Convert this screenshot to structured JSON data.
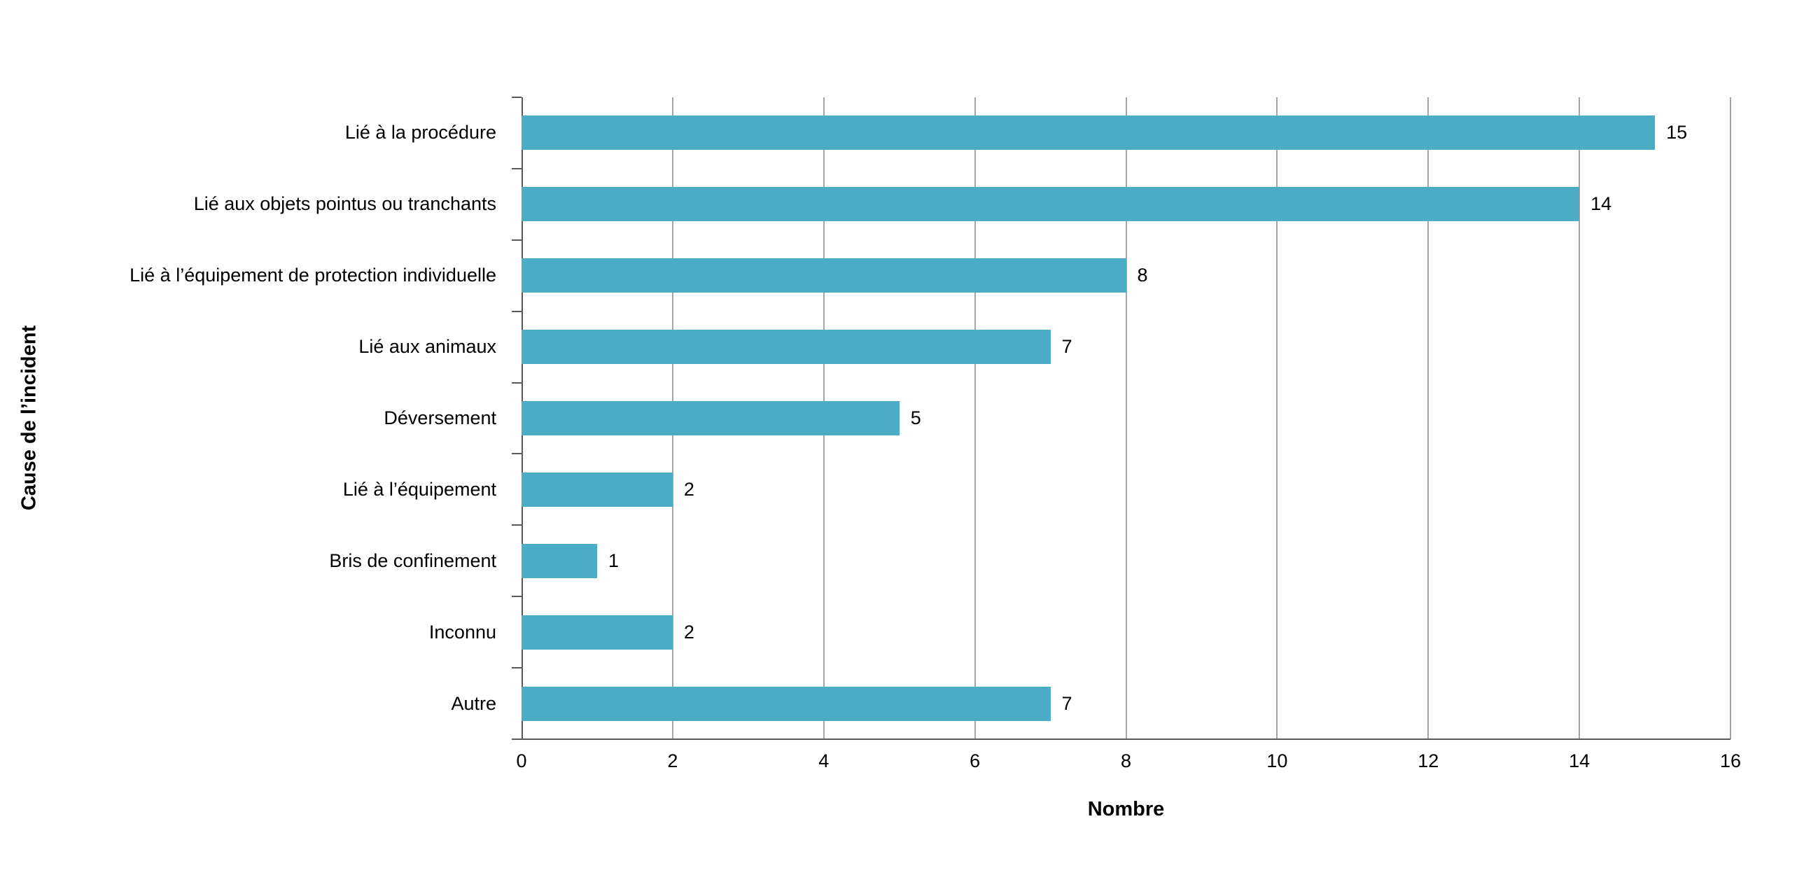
{
  "chart_data": {
    "type": "bar",
    "orientation": "horizontal",
    "title": "",
    "xlabel": "Nombre",
    "ylabel": "Cause de l’incident",
    "categories": [
      "Lié à la procédure",
      "Lié aux objets pointus ou tranchants",
      "Lié à l’équipement de protection individuelle",
      "Lié aux animaux",
      "Déversement",
      "Lié à l’équipement",
      "Bris de confinement",
      "Inconnu",
      "Autre"
    ],
    "values": [
      15,
      14,
      8,
      7,
      5,
      2,
      1,
      2,
      7
    ],
    "data_labels": [
      "15",
      "14",
      "8",
      "7",
      "5",
      "2",
      "1",
      "2",
      "7"
    ],
    "xlim": [
      0,
      16
    ],
    "xticks": [
      0,
      2,
      4,
      6,
      8,
      10,
      12,
      14,
      16
    ],
    "grid": true,
    "legend": "none",
    "bar_color": "#4BACC6",
    "gridline_color": "#A6A6A6",
    "axis_color": "#595959",
    "label_color": "#000000",
    "background_color": "#FFFFFF"
  }
}
